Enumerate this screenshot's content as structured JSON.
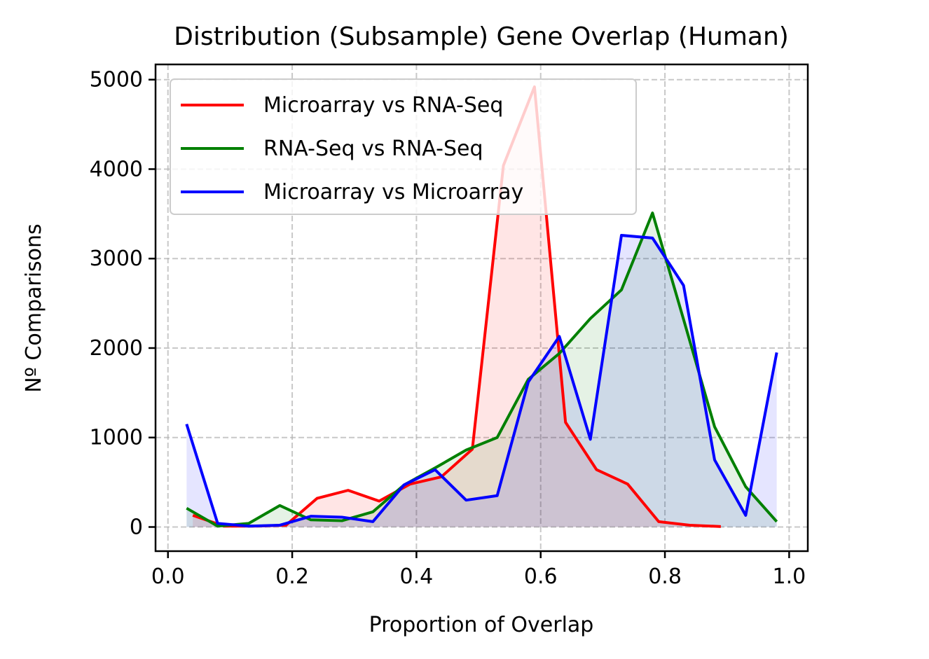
{
  "chart_data": {
    "type": "line",
    "title": "Distribution (Subsample) Gene Overlap (Human)",
    "xlabel": "Proportion of Overlap",
    "ylabel": "Nº Comparisons",
    "xlim": [
      -0.02,
      1.03
    ],
    "ylim": [
      -270,
      5170
    ],
    "xticks": [
      "0.0",
      "0.2",
      "0.4",
      "0.6",
      "0.8",
      "1.0"
    ],
    "yticks": [
      "0",
      "1000",
      "2000",
      "3000",
      "4000",
      "5000"
    ],
    "grid": true,
    "legend_position": "upper left",
    "series": [
      {
        "name": "Microarray vs RNA-Seq",
        "color": "#ff0000",
        "fill": "#ff0000",
        "x": [
          0.04,
          0.09,
          0.14,
          0.19,
          0.24,
          0.29,
          0.34,
          0.39,
          0.44,
          0.49,
          0.54,
          0.59,
          0.64,
          0.69,
          0.74,
          0.79,
          0.84,
          0.89
        ],
        "y": [
          130,
          10,
          10,
          20,
          320,
          410,
          290,
          480,
          560,
          870,
          4040,
          4920,
          1170,
          640,
          480,
          60,
          20,
          5
        ]
      },
      {
        "name": "RNA-Seq vs RNA-Seq",
        "color": "#008000",
        "fill": "#008000",
        "x": [
          0.03,
          0.08,
          0.13,
          0.18,
          0.23,
          0.28,
          0.33,
          0.38,
          0.43,
          0.48,
          0.53,
          0.58,
          0.63,
          0.68,
          0.73,
          0.78,
          0.83,
          0.88,
          0.93,
          0.98
        ],
        "y": [
          210,
          10,
          40,
          240,
          80,
          70,
          170,
          470,
          660,
          860,
          1000,
          1650,
          1940,
          2330,
          2650,
          3510,
          2320,
          1120,
          450,
          60
        ]
      },
      {
        "name": "Microarray vs Microarray",
        "color": "#0000ff",
        "fill": "#0000ff",
        "x": [
          0.03,
          0.08,
          0.13,
          0.18,
          0.23,
          0.28,
          0.33,
          0.38,
          0.43,
          0.48,
          0.53,
          0.58,
          0.63,
          0.68,
          0.73,
          0.78,
          0.83,
          0.88,
          0.93,
          0.98
        ],
        "y": [
          1150,
          40,
          10,
          20,
          120,
          110,
          60,
          470,
          640,
          300,
          350,
          1620,
          2130,
          980,
          3260,
          3230,
          2700,
          750,
          130,
          1950
        ]
      }
    ]
  }
}
